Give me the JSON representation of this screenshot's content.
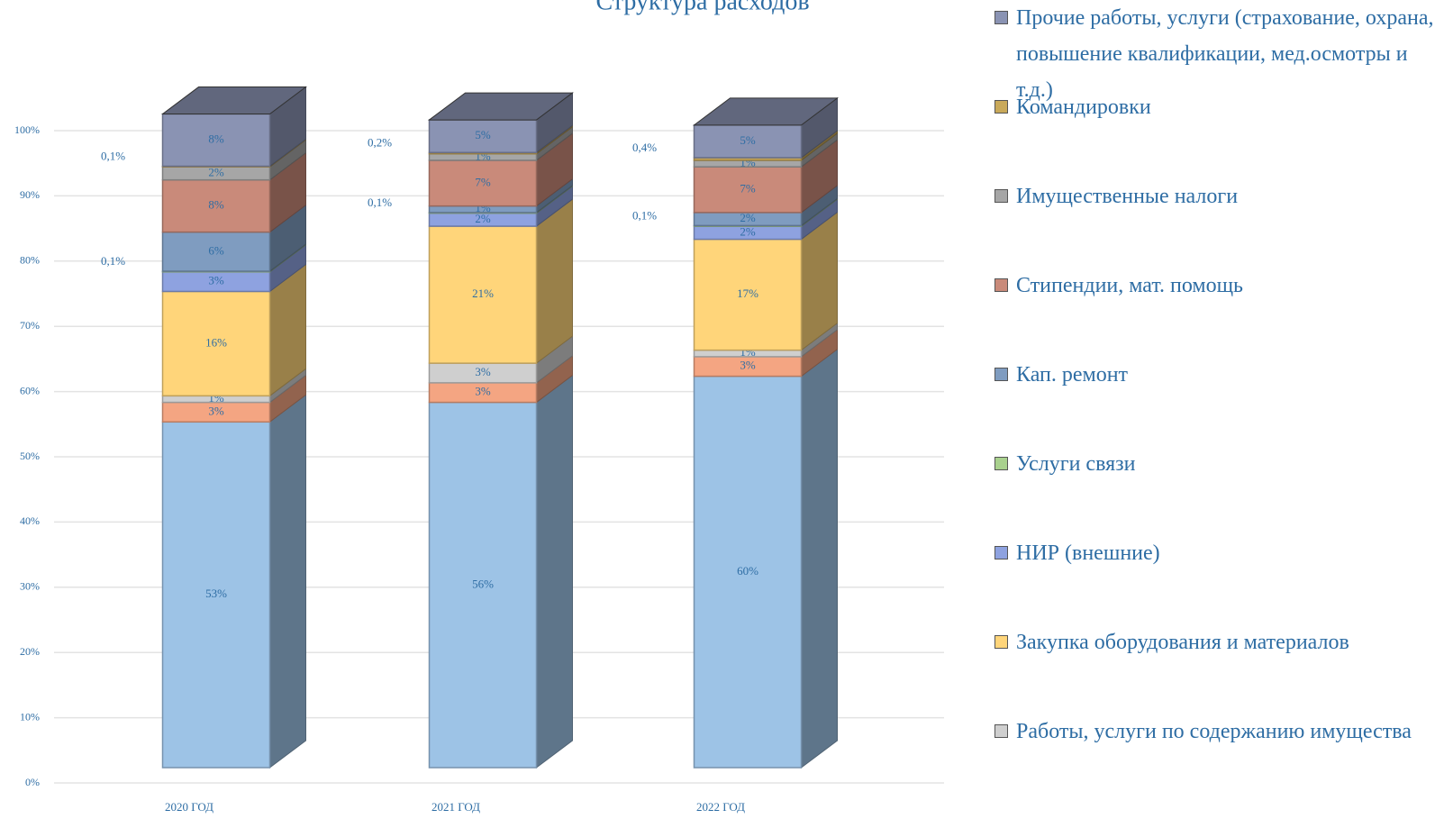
{
  "chart_data": {
    "type": "bar",
    "stacked": true,
    "title": "Структура расходов",
    "categories": [
      "2020 ГОД",
      "2021 ГОД",
      "2022 ГОД"
    ],
    "ylim": [
      0,
      100
    ],
    "yticks": [
      {
        "value": 0,
        "label": "0%"
      },
      {
        "value": 10,
        "label": "10%"
      },
      {
        "value": 20,
        "label": "20%"
      },
      {
        "value": 30,
        "label": "30%"
      },
      {
        "value": 40,
        "label": "40%"
      },
      {
        "value": 50,
        "label": "50%"
      },
      {
        "value": 60,
        "label": "60%"
      },
      {
        "value": 70,
        "label": "70%"
      },
      {
        "value": 80,
        "label": "80%"
      },
      {
        "value": 90,
        "label": "90%"
      },
      {
        "value": 100,
        "label": "100%"
      }
    ],
    "grid": true,
    "series": [
      {
        "color": "#9dc3e6",
        "values": [
          53,
          56,
          60
        ],
        "value_labels": [
          "53%",
          "56%",
          "60%"
        ]
      },
      {
        "color": "#f4a582",
        "values": [
          3,
          3,
          3
        ],
        "value_labels": [
          "3%",
          "3%",
          "3%"
        ]
      },
      {
        "name": "Работы, услуги по содержанию имущества",
        "color": "#cfcfcf",
        "values": [
          1,
          3,
          1
        ],
        "value_labels": [
          "1%",
          "3%",
          "1%"
        ]
      },
      {
        "name": "Закупка оборудования и материалов",
        "color": "#ffd57a",
        "values": [
          16,
          21,
          17
        ],
        "value_labels": [
          "16%",
          "21%",
          "17%"
        ]
      },
      {
        "name": "НИР (внешние)",
        "color": "#8ea2e0",
        "values": [
          3,
          2,
          2
        ],
        "value_labels": [
          "3%",
          "2%",
          "2%"
        ]
      },
      {
        "name": "Услуги связи",
        "color": "#a9d18e",
        "values": [
          0.1,
          0.1,
          0.1
        ],
        "value_labels": [
          "0,1%",
          "0,1%",
          "0,1%"
        ]
      },
      {
        "name": "Кап. ремонт",
        "color": "#7f9cc0",
        "values": [
          6,
          1,
          2
        ],
        "value_labels": [
          "6%",
          "1%",
          "2%"
        ]
      },
      {
        "name": "Стипендии, мат. помощь",
        "color": "#c98a7a",
        "values": [
          8,
          7,
          7
        ],
        "value_labels": [
          "8%",
          "7%",
          "7%"
        ]
      },
      {
        "name": "Имущественные налоги",
        "color": "#a6a6a6",
        "values": [
          2,
          1,
          1
        ],
        "value_labels": [
          "2%",
          "1%",
          "1%"
        ]
      },
      {
        "name": "Командировки",
        "color": "#c9a95a",
        "values": [
          0.1,
          0.2,
          0.4
        ],
        "value_labels": [
          "0,1%",
          "0,2%",
          "0,4%"
        ]
      },
      {
        "name": "Прочие работы, услуги (страхование, охрана, повышение квалификации, мед.осмотры и т.д.)",
        "color": "#8a93b3",
        "values": [
          8,
          5,
          5
        ],
        "value_labels": [
          "8%",
          "5%",
          "5%"
        ]
      }
    ]
  }
}
